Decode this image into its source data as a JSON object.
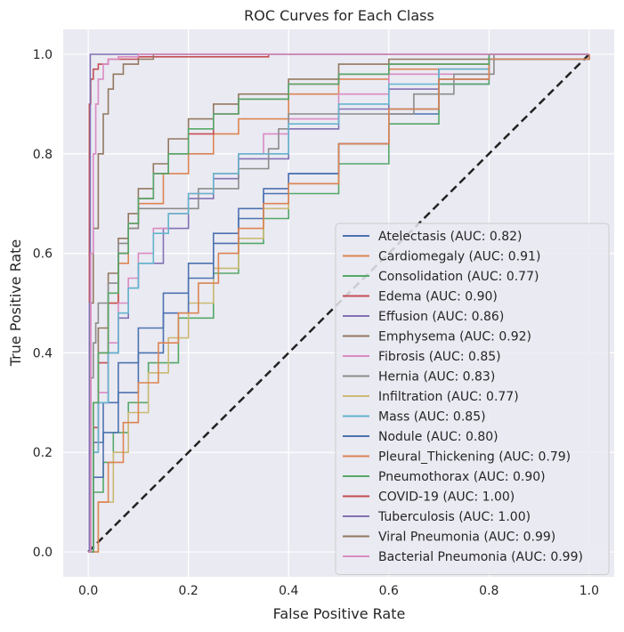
{
  "chart_data": {
    "type": "line",
    "title": "ROC Curves for Each Class",
    "xlabel": "False Positive Rate",
    "ylabel": "True Positive Rate",
    "xlim": [
      -0.05,
      1.05
    ],
    "ylim": [
      -0.05,
      1.05
    ],
    "xticks": [
      0.0,
      0.2,
      0.4,
      0.6,
      0.8,
      1.0
    ],
    "yticks": [
      0.0,
      0.2,
      0.4,
      0.6,
      0.8,
      1.0
    ],
    "xtick_labels": [
      "0.0",
      "0.2",
      "0.4",
      "0.6",
      "0.8",
      "1.0"
    ],
    "ytick_labels": [
      "0.0",
      "0.2",
      "0.4",
      "0.6",
      "0.8",
      "1.0"
    ],
    "grid": true,
    "legend_position": "lower-right",
    "background_color": "#eaeaf2",
    "diagonal": {
      "x": [
        0,
        1
      ],
      "y": [
        0,
        1
      ],
      "color": "#222222",
      "style": "dashed"
    },
    "series": [
      {
        "name": "Atelectasis (AUC: 0.82)",
        "color": "#4c72b0",
        "x": [
          0,
          0.01,
          0.03,
          0.06,
          0.1,
          0.15,
          0.2,
          0.25,
          0.3,
          0.35,
          0.4,
          0.5,
          0.6,
          0.7,
          0.8,
          1.0
        ],
        "y": [
          0,
          0.22,
          0.3,
          0.38,
          0.45,
          0.52,
          0.58,
          0.64,
          0.69,
          0.73,
          0.76,
          0.82,
          0.88,
          0.94,
          0.99,
          1.0
        ]
      },
      {
        "name": "Cardiomegaly (AUC: 0.91)",
        "color": "#dd8452",
        "x": [
          0,
          0.01,
          0.02,
          0.04,
          0.06,
          0.08,
          0.1,
          0.15,
          0.2,
          0.25,
          0.3,
          0.4,
          0.5,
          0.6,
          0.8,
          1.0
        ],
        "y": [
          0,
          0.3,
          0.4,
          0.5,
          0.58,
          0.65,
          0.7,
          0.76,
          0.8,
          0.84,
          0.87,
          0.92,
          0.95,
          0.97,
          1.0,
          1.0
        ]
      },
      {
        "name": "Consolidation (AUC: 0.77)",
        "color": "#55a868",
        "x": [
          0,
          0.01,
          0.03,
          0.05,
          0.08,
          0.12,
          0.18,
          0.25,
          0.3,
          0.35,
          0.4,
          0.5,
          0.6,
          0.7,
          0.8,
          1.0
        ],
        "y": [
          0,
          0.12,
          0.18,
          0.24,
          0.3,
          0.38,
          0.47,
          0.56,
          0.62,
          0.67,
          0.72,
          0.78,
          0.86,
          0.94,
          0.99,
          1.0
        ]
      },
      {
        "name": "Edema (AUC: 0.90)",
        "color": "#c44e52",
        "x": [
          0,
          0.01,
          0.02,
          0.04,
          0.06,
          0.08,
          0.1,
          0.13,
          0.16,
          0.2,
          0.25,
          0.3,
          0.4,
          0.5,
          0.6,
          0.8,
          1.0
        ],
        "y": [
          0,
          0.25,
          0.38,
          0.5,
          0.6,
          0.66,
          0.71,
          0.76,
          0.8,
          0.84,
          0.88,
          0.91,
          0.94,
          0.96,
          0.98,
          1.0,
          1.0
        ]
      },
      {
        "name": "Effusion (AUC: 0.86)",
        "color": "#8172b3",
        "x": [
          0,
          0.01,
          0.02,
          0.04,
          0.06,
          0.08,
          0.1,
          0.15,
          0.2,
          0.25,
          0.3,
          0.4,
          0.5,
          0.6,
          0.7,
          0.8,
          1.0
        ],
        "y": [
          0,
          0.22,
          0.3,
          0.4,
          0.47,
          0.53,
          0.58,
          0.65,
          0.71,
          0.75,
          0.79,
          0.85,
          0.89,
          0.93,
          0.97,
          1.0,
          1.0
        ]
      },
      {
        "name": "Emphysema (AUC: 0.92)",
        "color": "#937860",
        "x": [
          0,
          0.01,
          0.02,
          0.04,
          0.06,
          0.08,
          0.1,
          0.13,
          0.16,
          0.2,
          0.25,
          0.3,
          0.4,
          0.5,
          0.6,
          0.8,
          1.0
        ],
        "y": [
          0,
          0.3,
          0.45,
          0.56,
          0.63,
          0.68,
          0.73,
          0.78,
          0.83,
          0.87,
          0.9,
          0.92,
          0.95,
          0.98,
          0.99,
          1.0,
          1.0
        ]
      },
      {
        "name": "Fibrosis (AUC: 0.85)",
        "color": "#da8bc3",
        "x": [
          0,
          0.01,
          0.02,
          0.04,
          0.06,
          0.08,
          0.1,
          0.13,
          0.16,
          0.2,
          0.25,
          0.3,
          0.35,
          0.4,
          0.5,
          0.6,
          0.8,
          1.0
        ],
        "y": [
          0,
          0.2,
          0.32,
          0.42,
          0.5,
          0.55,
          0.6,
          0.65,
          0.68,
          0.72,
          0.76,
          0.8,
          0.84,
          0.87,
          0.92,
          0.96,
          1.0,
          1.0
        ]
      },
      {
        "name": "Hernia (AUC: 0.83)",
        "color": "#8c8c8c",
        "x": [
          0,
          0.005,
          0.01,
          0.015,
          0.02,
          0.04,
          0.06,
          0.08,
          0.1,
          0.22,
          0.3,
          0.36,
          0.38,
          0.4,
          0.53,
          0.65,
          0.73,
          0.81,
          1.0
        ],
        "y": [
          0,
          0.35,
          0.42,
          0.46,
          0.5,
          0.54,
          0.62,
          0.65,
          0.69,
          0.73,
          0.77,
          0.81,
          0.85,
          0.88,
          0.88,
          0.92,
          0.96,
          1.0,
          1.0
        ]
      },
      {
        "name": "Infiltration (AUC: 0.77)",
        "color": "#ccb974",
        "x": [
          0,
          0.02,
          0.05,
          0.08,
          0.12,
          0.16,
          0.2,
          0.25,
          0.3,
          0.35,
          0.4,
          0.5,
          0.6,
          0.7,
          0.8,
          1.0
        ],
        "y": [
          0,
          0.1,
          0.2,
          0.28,
          0.36,
          0.43,
          0.5,
          0.57,
          0.63,
          0.69,
          0.74,
          0.82,
          0.89,
          0.95,
          0.99,
          1.0
        ]
      },
      {
        "name": "Mass (AUC: 0.85)",
        "color": "#64b5cd",
        "x": [
          0,
          0.01,
          0.02,
          0.04,
          0.06,
          0.08,
          0.1,
          0.13,
          0.16,
          0.2,
          0.25,
          0.3,
          0.4,
          0.5,
          0.6,
          0.7,
          0.8,
          1.0
        ],
        "y": [
          0,
          0.2,
          0.3,
          0.4,
          0.48,
          0.53,
          0.58,
          0.64,
          0.68,
          0.72,
          0.76,
          0.8,
          0.86,
          0.9,
          0.94,
          0.97,
          1.0,
          1.0
        ]
      },
      {
        "name": "Nodule (AUC: 0.80)",
        "color": "#4c72b0",
        "x": [
          0,
          0.01,
          0.03,
          0.06,
          0.1,
          0.15,
          0.2,
          0.25,
          0.3,
          0.35,
          0.4,
          0.5,
          0.6,
          0.7,
          0.8,
          1.0
        ],
        "y": [
          0,
          0.15,
          0.24,
          0.32,
          0.4,
          0.48,
          0.55,
          0.62,
          0.67,
          0.72,
          0.76,
          0.82,
          0.89,
          0.95,
          0.99,
          1.0
        ]
      },
      {
        "name": "Pleural_Thickening (AUC: 0.79)",
        "color": "#dd8452",
        "x": [
          0,
          0.02,
          0.04,
          0.07,
          0.1,
          0.14,
          0.18,
          0.22,
          0.26,
          0.3,
          0.35,
          0.4,
          0.5,
          0.6,
          0.7,
          0.8,
          1.0
        ],
        "y": [
          0,
          0.1,
          0.18,
          0.26,
          0.34,
          0.42,
          0.48,
          0.54,
          0.6,
          0.65,
          0.7,
          0.74,
          0.82,
          0.89,
          0.95,
          0.99,
          1.0
        ]
      },
      {
        "name": "Pneumothorax (AUC: 0.90)",
        "color": "#55a868",
        "x": [
          0,
          0.01,
          0.02,
          0.04,
          0.06,
          0.08,
          0.1,
          0.13,
          0.16,
          0.2,
          0.25,
          0.3,
          0.4,
          0.5,
          0.6,
          0.8,
          1.0
        ],
        "y": [
          0,
          0.3,
          0.4,
          0.52,
          0.6,
          0.66,
          0.71,
          0.76,
          0.8,
          0.85,
          0.88,
          0.91,
          0.94,
          0.96,
          0.98,
          1.0,
          1.0
        ]
      },
      {
        "name": "COVID-19 (AUC: 1.00)",
        "color": "#c44e52",
        "x": [
          0,
          0.002,
          0.005,
          0.01,
          0.02,
          0.04,
          0.1,
          0.36
        ],
        "y": [
          0,
          0.9,
          0.95,
          0.97,
          0.98,
          0.99,
          0.995,
          1.0
        ]
      },
      {
        "name": "Tuberculosis (AUC: 1.00)",
        "color": "#8172b3",
        "x": [
          0,
          0.002,
          0.004,
          1.0
        ],
        "y": [
          0,
          0.5,
          1.0,
          1.0
        ]
      },
      {
        "name": "Viral Pneumonia (AUC: 0.99)",
        "color": "#937860",
        "x": [
          0,
          0.005,
          0.01,
          0.02,
          0.03,
          0.04,
          0.05,
          0.07,
          0.1,
          0.13,
          1.0
        ],
        "y": [
          0,
          0.5,
          0.65,
          0.8,
          0.88,
          0.93,
          0.96,
          0.98,
          0.99,
          1.0,
          1.0
        ]
      },
      {
        "name": "Bacterial Pneumonia (AUC: 0.99)",
        "color": "#da8bc3",
        "x": [
          0,
          0.005,
          0.01,
          0.015,
          0.02,
          0.03,
          0.04,
          0.06,
          0.1,
          1.0
        ],
        "y": [
          0,
          0.6,
          0.8,
          0.9,
          0.95,
          0.98,
          0.99,
          0.995,
          1.0,
          1.0
        ]
      }
    ]
  }
}
